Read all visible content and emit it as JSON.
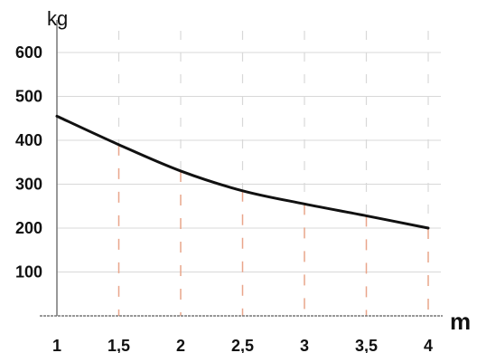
{
  "chart_data": {
    "type": "line",
    "xlabel": "m",
    "ylabel": "kg",
    "x_ticks": [
      "1",
      "1,5",
      "2",
      "2,5",
      "3",
      "3,5",
      "4"
    ],
    "y_ticks": [
      "100",
      "200",
      "300",
      "400",
      "500",
      "600"
    ],
    "xlim": [
      1,
      4
    ],
    "ylim": [
      0,
      600
    ],
    "x": [
      1,
      1.5,
      2,
      2.5,
      3,
      3.5,
      4
    ],
    "values": [
      455,
      390,
      330,
      285,
      255,
      228,
      200
    ],
    "grid": true,
    "colors": {
      "curve": "#111111",
      "grid_upper": "#d8d8d8",
      "grid_lower": "#e9a58a",
      "axis": "#777777"
    }
  }
}
